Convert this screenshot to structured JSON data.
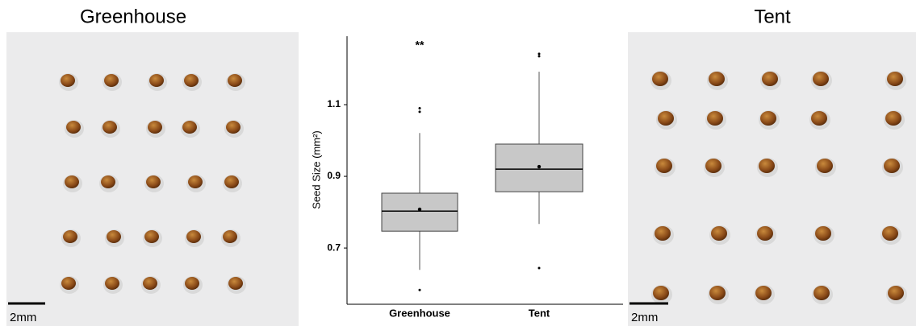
{
  "panels": {
    "left_title": "Greenhouse",
    "right_title": "Tent",
    "left_scale": "2mm",
    "right_scale": "2mm"
  },
  "chart_data": {
    "type": "box",
    "y_label": "Seed Size (mm²)",
    "annotation": "**",
    "categories": [
      "Greenhouse",
      "Tent"
    ],
    "boxes": [
      {
        "whisker_low": 0.639,
        "q1": 0.747,
        "median": 0.803,
        "q3": 0.853,
        "whisker_high": 1.021,
        "mean": 0.808,
        "outliers": [
          0.583,
          1.08,
          1.09
        ]
      },
      {
        "whisker_low": 0.767,
        "q1": 0.857,
        "median": 0.92,
        "q3": 0.99,
        "whisker_high": 1.192,
        "mean": 0.927,
        "outliers": [
          0.644,
          1.235,
          1.242
        ]
      }
    ],
    "box_color": "#c8c8c8",
    "ylim": [
      0.543,
      1.291
    ],
    "yticks": [
      0.7,
      0.9,
      1.1
    ]
  }
}
